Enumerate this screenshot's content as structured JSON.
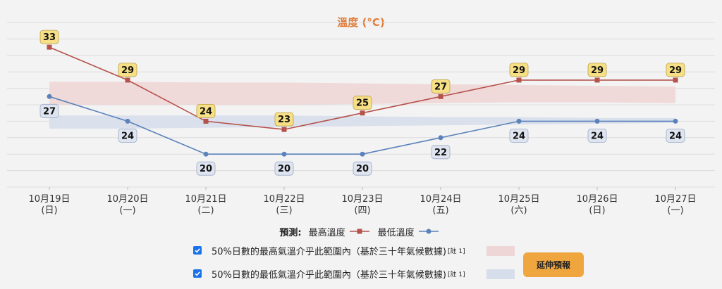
{
  "chart_data": {
    "type": "line",
    "title": "溫度 (°C)",
    "categories": [
      [
        "10月19日",
        "(日)"
      ],
      [
        "10月20日",
        "(一)"
      ],
      [
        "10月21日",
        "(二)"
      ],
      [
        "10月22日",
        "(三)"
      ],
      [
        "10月23日",
        "(四)"
      ],
      [
        "10月24日",
        "(五)"
      ],
      [
        "10月25日",
        "(六)"
      ],
      [
        "10月26日",
        "(日)"
      ],
      [
        "10月27日",
        "(一)"
      ]
    ],
    "ylim": [
      16,
      36
    ],
    "grid": true,
    "series": [
      {
        "name": "最高溫度",
        "color": "#b5524b",
        "marker": "square",
        "values": [
          33,
          29,
          24,
          23,
          25,
          27,
          29,
          29,
          29
        ]
      },
      {
        "name": "最低溫度",
        "color": "#5b82ba",
        "marker": "circle",
        "values": [
          27,
          24,
          20,
          20,
          20,
          22,
          24,
          24,
          24
        ]
      }
    ],
    "bands": [
      {
        "color": "#efd6d6",
        "lower": [
          26,
          26,
          26,
          26,
          26.1,
          26.2,
          26.3,
          26.3,
          26.2
        ],
        "upper": [
          28.8,
          28.8,
          28.7,
          28.7,
          28.6,
          28.5,
          28.4,
          28.3,
          28.2
        ]
      },
      {
        "color": "#d7deeb",
        "lower": [
          23.1,
          23.1,
          23.2,
          23.3,
          23.4,
          23.5,
          23.6,
          23.7,
          23.8
        ],
        "upper": [
          24.7,
          24.7,
          24.7,
          24.7,
          24.6,
          24.5,
          24.5,
          24.4,
          24.4
        ]
      }
    ]
  },
  "legend": {
    "prefix": "預測:",
    "max_label": "最高溫度",
    "min_label": "最低溫度"
  },
  "range_max": {
    "label": "50%日數的最高氣溫介乎此範圍內（基於三十年氣候數據)",
    "note": "[註 1]"
  },
  "range_min": {
    "label": "50%日數的最低氣溫介乎此範圍內（基於三十年氣候數據)",
    "note": "[註 1]"
  },
  "extend_button": "延伸預報"
}
